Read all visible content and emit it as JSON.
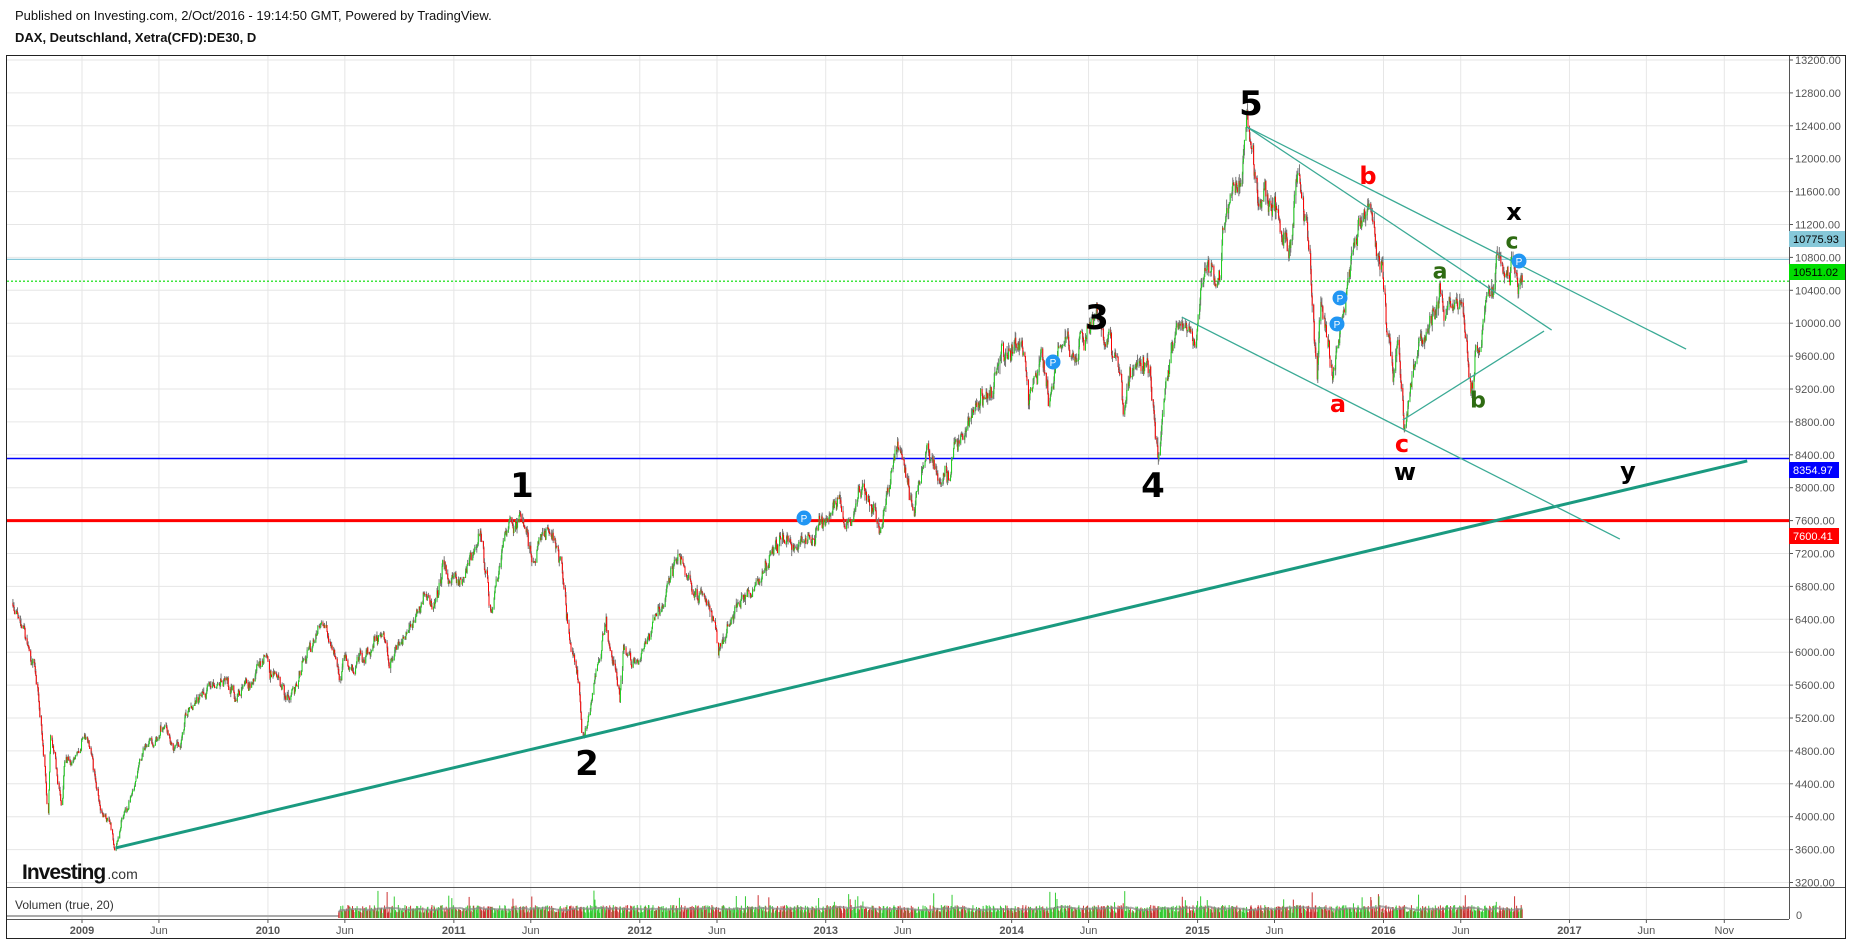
{
  "header": {
    "published": "Published on Investing.com, 2/Oct/2016 - 19:14:50 GMT, Powered by TradingView.",
    "symbol": "DAX, Deutschland, Xetra(CFD):DE30, D"
  },
  "logo": {
    "brand": "Investing",
    "suffix": ".com"
  },
  "volume_pane": {
    "label": "Volumen (true, 20)",
    "axis_zero": "0"
  },
  "chart_data": {
    "type": "candlestick",
    "timeframe": "D",
    "ylim": [
      3200,
      13200
    ],
    "y_ticks": [
      "3200.00",
      "3600.00",
      "4000.00",
      "4400.00",
      "4800.00",
      "5200.00",
      "5600.00",
      "6000.00",
      "6400.00",
      "6800.00",
      "7200.00",
      "7600.00",
      "8000.00",
      "8400.00",
      "8800.00",
      "9200.00",
      "9600.00",
      "10000.00",
      "10400.00",
      "10800.00",
      "11200.00",
      "11600.00",
      "12000.00",
      "12400.00",
      "12800.00",
      "13200.00"
    ],
    "x_ticks": [
      {
        "label": "2009",
        "date": "2009-01-01",
        "year": true
      },
      {
        "label": "Jun",
        "date": "2009-06-01",
        "year": false
      },
      {
        "label": "2010",
        "date": "2010-01-01",
        "year": true
      },
      {
        "label": "Jun",
        "date": "2010-06-01",
        "year": false
      },
      {
        "label": "2011",
        "date": "2011-01-01",
        "year": true
      },
      {
        "label": "Jun",
        "date": "2011-06-01",
        "year": false
      },
      {
        "label": "2012",
        "date": "2012-01-01",
        "year": true
      },
      {
        "label": "Jun",
        "date": "2012-06-01",
        "year": false
      },
      {
        "label": "2013",
        "date": "2013-01-01",
        "year": true
      },
      {
        "label": "Jun",
        "date": "2013-06-01",
        "year": false
      },
      {
        "label": "2014",
        "date": "2014-01-01",
        "year": true
      },
      {
        "label": "Jun",
        "date": "2014-06-01",
        "year": false
      },
      {
        "label": "2015",
        "date": "2015-01-01",
        "year": true
      },
      {
        "label": "Jun",
        "date": "2015-06-01",
        "year": false
      },
      {
        "label": "2016",
        "date": "2016-01-01",
        "year": true
      },
      {
        "label": "Jun",
        "date": "2016-06-01",
        "year": false
      },
      {
        "label": "2017",
        "date": "2017-01-01",
        "year": true
      },
      {
        "label": "Jun",
        "date": "2017-06-01",
        "year": false
      },
      {
        "label": "Nov",
        "date": "2017-11-01",
        "year": false
      }
    ],
    "grid": true,
    "colors": {
      "up": "#1fd11f",
      "down": "#ff0000",
      "wick": "#777777",
      "grid": "#e6e6e6"
    },
    "monthly_close": [
      [
        "2008-08-29",
        6422
      ],
      [
        "2008-09-30",
        5831
      ],
      [
        "2008-10-31",
        4988
      ],
      [
        "2008-11-28",
        4669
      ],
      [
        "2008-12-30",
        4810
      ],
      [
        "2009-01-30",
        4338
      ],
      [
        "2009-02-27",
        3843
      ],
      [
        "2009-03-31",
        4085
      ],
      [
        "2009-04-30",
        4769
      ],
      [
        "2009-05-29",
        4941
      ],
      [
        "2009-06-30",
        4809
      ],
      [
        "2009-07-31",
        5332
      ],
      [
        "2009-08-31",
        5458
      ],
      [
        "2009-09-30",
        5675
      ],
      [
        "2009-10-30",
        5414
      ],
      [
        "2009-11-30",
        5625
      ],
      [
        "2009-12-30",
        5957
      ],
      [
        "2010-01-29",
        5608
      ],
      [
        "2010-02-26",
        5598
      ],
      [
        "2010-03-31",
        6153
      ],
      [
        "2010-04-30",
        6135
      ],
      [
        "2010-05-31",
        5964
      ],
      [
        "2010-06-30",
        5966
      ],
      [
        "2010-07-30",
        6148
      ],
      [
        "2010-08-31",
        5925
      ],
      [
        "2010-09-30",
        6229
      ],
      [
        "2010-10-29",
        6601
      ],
      [
        "2010-11-30",
        6688
      ],
      [
        "2010-12-30",
        6914
      ],
      [
        "2011-01-31",
        7077
      ],
      [
        "2011-02-28",
        7272
      ],
      [
        "2011-03-31",
        7041
      ],
      [
        "2011-04-29",
        7514
      ],
      [
        "2011-05-31",
        7294
      ],
      [
        "2011-06-30",
        7376
      ],
      [
        "2011-07-29",
        7159
      ],
      [
        "2011-08-31",
        5785
      ],
      [
        "2011-09-30",
        5502
      ],
      [
        "2011-10-31",
        6141
      ],
      [
        "2011-11-30",
        6088
      ],
      [
        "2011-12-30",
        5898
      ],
      [
        "2012-01-31",
        6458
      ],
      [
        "2012-02-29",
        6856
      ],
      [
        "2012-03-30",
        6947
      ],
      [
        "2012-04-30",
        6761
      ],
      [
        "2012-05-31",
        6264
      ],
      [
        "2012-06-29",
        6416
      ],
      [
        "2012-07-31",
        6772
      ],
      [
        "2012-08-31",
        6970
      ],
      [
        "2012-09-28",
        7216
      ],
      [
        "2012-10-31",
        7260
      ],
      [
        "2012-11-30",
        7405
      ],
      [
        "2012-12-28",
        7612
      ],
      [
        "2013-01-31",
        7776
      ],
      [
        "2013-02-28",
        7742
      ],
      [
        "2013-03-28",
        7795
      ],
      [
        "2013-04-30",
        7914
      ],
      [
        "2013-05-31",
        8349
      ],
      [
        "2013-06-28",
        7959
      ],
      [
        "2013-07-31",
        8276
      ],
      [
        "2013-08-30",
        8104
      ],
      [
        "2013-09-30",
        8594
      ],
      [
        "2013-10-31",
        9033
      ],
      [
        "2013-11-29",
        9406
      ],
      [
        "2013-12-30",
        9552
      ],
      [
        "2014-01-31",
        9306
      ],
      [
        "2014-02-28",
        9692
      ],
      [
        "2014-03-31",
        9556
      ],
      [
        "2014-04-30",
        9603
      ],
      [
        "2014-05-30",
        9943
      ],
      [
        "2014-06-30",
        9833
      ],
      [
        "2014-07-31",
        9407
      ],
      [
        "2014-08-29",
        9470
      ],
      [
        "2014-09-30",
        9474
      ],
      [
        "2014-10-31",
        9327
      ],
      [
        "2014-11-28",
        9980
      ],
      [
        "2014-12-30",
        9806
      ],
      [
        "2015-01-30",
        10694
      ],
      [
        "2015-02-27",
        11402
      ],
      [
        "2015-03-31",
        11966
      ],
      [
        "2015-04-30",
        11454
      ],
      [
        "2015-05-29",
        11414
      ],
      [
        "2015-06-30",
        10945
      ],
      [
        "2015-07-31",
        11309
      ],
      [
        "2015-08-31",
        10259
      ],
      [
        "2015-09-30",
        9660
      ],
      [
        "2015-10-30",
        10850
      ],
      [
        "2015-11-30",
        11382
      ],
      [
        "2015-12-30",
        10743
      ],
      [
        "2016-01-29",
        9798
      ],
      [
        "2016-02-29",
        9495
      ],
      [
        "2016-03-31",
        9966
      ],
      [
        "2016-04-29",
        10039
      ],
      [
        "2016-05-31",
        10263
      ],
      [
        "2016-06-30",
        9680
      ],
      [
        "2016-07-29",
        10337
      ],
      [
        "2016-08-31",
        10593
      ],
      [
        "2016-09-30",
        10511
      ]
    ],
    "swing_extremes": [
      [
        "2008-08-15",
        6600
      ],
      [
        "2008-10-27",
        4050
      ],
      [
        "2008-11-21",
        4150
      ],
      [
        "2009-01-06",
        5000
      ],
      [
        "2009-03-06",
        3600
      ],
      [
        "2009-06-12",
        5100
      ],
      [
        "2010-02-05",
        5430
      ],
      [
        "2010-04-26",
        6330
      ],
      [
        "2010-05-25",
        5670
      ],
      [
        "2011-02-18",
        7440
      ],
      [
        "2011-03-16",
        6510
      ],
      [
        "2011-05-02",
        7600
      ],
      [
        "2011-07-01",
        7500
      ],
      [
        "2011-09-12",
        4965
      ],
      [
        "2011-10-27",
        6430
      ],
      [
        "2011-11-23",
        5400
      ],
      [
        "2012-03-16",
        7190
      ],
      [
        "2012-06-04",
        5970
      ],
      [
        "2013-01-25",
        7870
      ],
      [
        "2013-04-18",
        7460
      ],
      [
        "2013-05-22",
        8560
      ],
      [
        "2013-06-24",
        7660
      ],
      [
        "2014-01-21",
        9790
      ],
      [
        "2014-02-03",
        9010
      ],
      [
        "2014-03-14",
        9000
      ],
      [
        "2014-06-20",
        10050
      ],
      [
        "2014-08-08",
        8900
      ],
      [
        "2014-10-16",
        8355
      ],
      [
        "2015-04-10",
        12390
      ],
      [
        "2015-06-29",
        10800
      ],
      [
        "2015-07-20",
        11800
      ],
      [
        "2015-08-24",
        9330
      ],
      [
        "2015-09-24",
        9340
      ],
      [
        "2015-11-30",
        11430
      ],
      [
        "2016-01-20",
        9300
      ],
      [
        "2016-02-11",
        8700
      ],
      [
        "2016-04-20",
        10450
      ],
      [
        "2016-06-24",
        9215
      ],
      [
        "2016-08-15",
        10800
      ]
    ],
    "price_lines": [
      {
        "label": "10775.93",
        "price": 10775.93,
        "color": "#86c8d9",
        "text_color": "#000000",
        "style": "solid"
      },
      {
        "label": "10511.02",
        "price": 10511.02,
        "color": "#00dd00",
        "text_color": "#000000",
        "style": "dotted"
      },
      {
        "label": "8354.97",
        "price": 8354.97,
        "color": "#0000ff",
        "text_color": "#ffffff",
        "style": "solid"
      },
      {
        "label": "7600.41",
        "price": 7600.41,
        "color": "#ff0000",
        "text_color": "#ffffff",
        "style": "solid-thick"
      }
    ],
    "trend_lines": [
      {
        "name": "long-trendline",
        "color": "#1a9a80",
        "from": [
          "2009-03-08",
          3620
        ],
        "to": [
          "2017-12-16",
          8325
        ],
        "thick": true
      },
      {
        "name": "channel-upper-a",
        "color": "#3aaa95",
        "from": [
          "2015-04-08",
          12385
        ],
        "to": [
          "2017-08-18",
          9686
        ],
        "thick": false
      },
      {
        "name": "channel-upper-b",
        "color": "#3aaa95",
        "from": [
          "2015-04-08",
          12385
        ],
        "to": [
          "2016-11-27",
          9917
        ],
        "thick": false
      },
      {
        "name": "channel-lower",
        "color": "#3aaa95",
        "from": [
          "2014-12-01",
          10075
        ],
        "to": [
          "2017-04-10",
          7376
        ],
        "thick": false
      },
      {
        "name": "triangle-lower",
        "color": "#3aaa95",
        "from": [
          "2016-02-08",
          8823
        ],
        "to": [
          "2016-11-12",
          9905
        ],
        "thick": false
      }
    ],
    "wave_labels": [
      {
        "text": "1",
        "color": "#000000"
      },
      {
        "text": "2",
        "color": "#000000"
      },
      {
        "text": "3",
        "color": "#000000"
      },
      {
        "text": "4",
        "color": "#000000"
      },
      {
        "text": "5",
        "color": "#000000"
      },
      {
        "text": "a",
        "color": "#ff0000"
      },
      {
        "text": "b",
        "color": "#ff0000"
      },
      {
        "text": "c",
        "color": "#ff0000"
      },
      {
        "text": "w",
        "color": "#000000"
      },
      {
        "text": "a",
        "color": "#2e6b12"
      },
      {
        "text": "b",
        "color": "#2e6b12"
      },
      {
        "text": "c",
        "color": "#2e6b12"
      },
      {
        "text": "x",
        "color": "#000000"
      },
      {
        "text": "y",
        "color": "#000000"
      }
    ],
    "markers": [
      {
        "text": "P"
      },
      {
        "text": "P"
      },
      {
        "text": "P"
      },
      {
        "text": "P"
      },
      {
        "text": "P"
      }
    ]
  }
}
